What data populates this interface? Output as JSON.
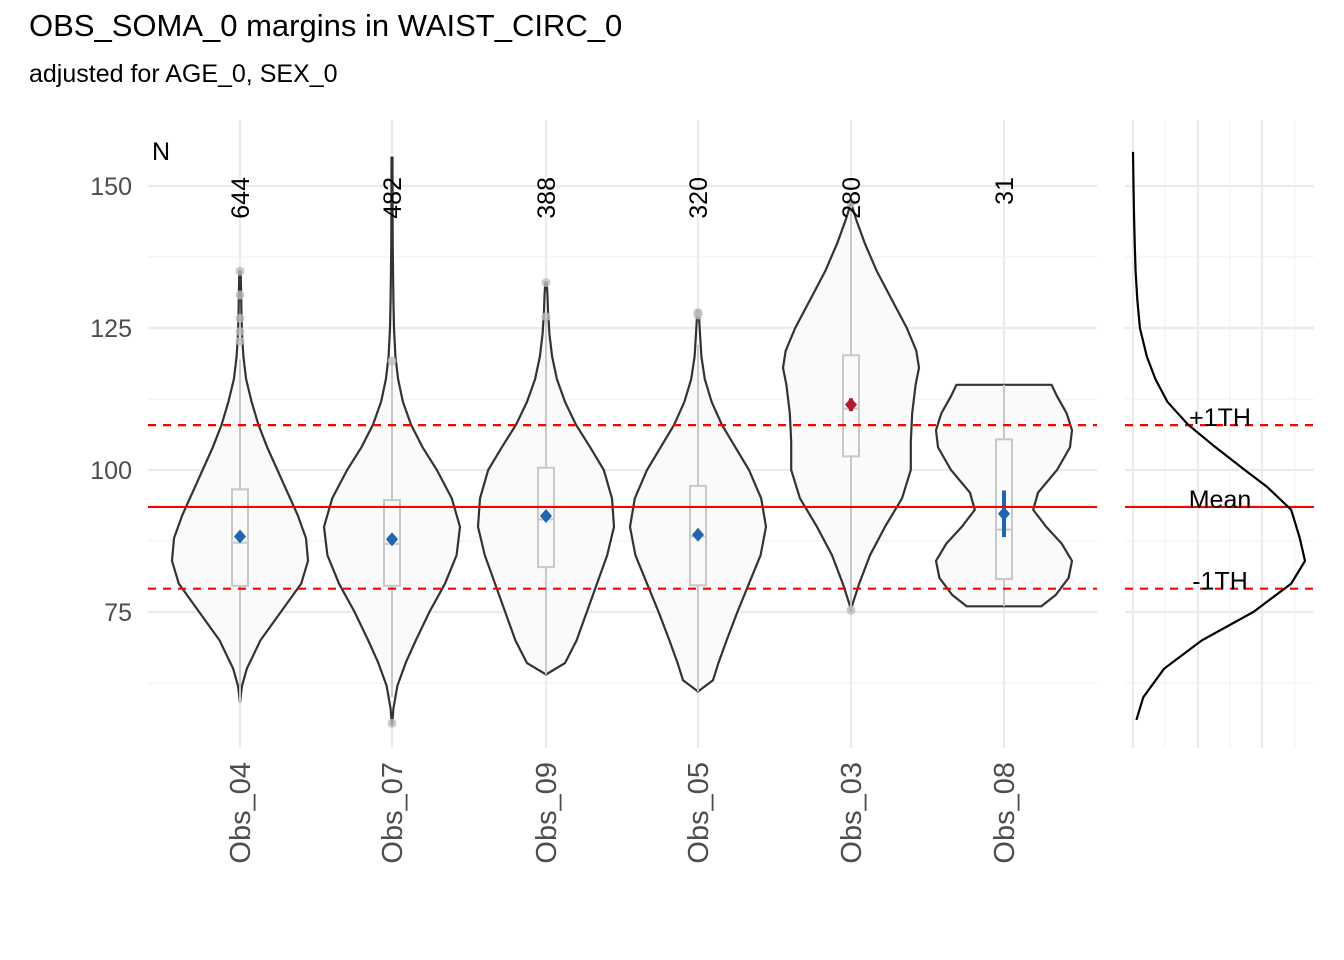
{
  "chart_data": {
    "type": "violin",
    "title": "OBS_SOMA_0 margins in WAIST_CIRC_0",
    "subtitle": "adjusted for AGE_0, SEX_0",
    "n_header": "N",
    "y_ticks": [
      75,
      100,
      125,
      150
    ],
    "ylim": [
      52,
      158
    ],
    "grid": true,
    "groups": [
      {
        "label": "Obs_04",
        "n": "644",
        "mean": 88.3,
        "ci": [
          87.6,
          89.0
        ],
        "q1": 79.6,
        "median": 87.2,
        "q3": 96.6,
        "whisker_low": 59.0,
        "whisker_high": 119.5,
        "min": 59.0,
        "max": 135.0,
        "highlight": "#2166ac",
        "outliers": [
          135.0,
          130.8,
          126.7,
          124.4,
          122.7
        ],
        "density": [
          [
            59,
            0.0
          ],
          [
            62,
            0.03
          ],
          [
            65,
            0.1
          ],
          [
            70,
            0.3
          ],
          [
            75,
            0.6
          ],
          [
            80,
            0.9
          ],
          [
            84,
            1.0
          ],
          [
            88,
            0.97
          ],
          [
            92,
            0.85
          ],
          [
            96,
            0.7
          ],
          [
            100,
            0.55
          ],
          [
            104,
            0.4
          ],
          [
            108,
            0.27
          ],
          [
            112,
            0.17
          ],
          [
            116,
            0.09
          ],
          [
            120,
            0.05
          ],
          [
            124,
            0.03
          ],
          [
            128,
            0.02
          ],
          [
            132,
            0.015
          ],
          [
            135,
            0.01
          ]
        ]
      },
      {
        "label": "Obs_07",
        "n": "482",
        "mean": 87.8,
        "ci": [
          87.2,
          88.5
        ],
        "q1": 79.6,
        "median": 87.0,
        "q3": 94.7,
        "whisker_low": 60.0,
        "whisker_high": 119.2,
        "min": 55.0,
        "max": 155.0,
        "highlight": "#2166ac",
        "outliers": [
          119.2,
          55.4
        ],
        "density": [
          [
            55,
            0.0
          ],
          [
            58,
            0.02
          ],
          [
            62,
            0.08
          ],
          [
            66,
            0.2
          ],
          [
            70,
            0.35
          ],
          [
            75,
            0.55
          ],
          [
            80,
            0.78
          ],
          [
            85,
            0.95
          ],
          [
            90,
            1.0
          ],
          [
            95,
            0.88
          ],
          [
            100,
            0.66
          ],
          [
            104,
            0.45
          ],
          [
            108,
            0.28
          ],
          [
            112,
            0.16
          ],
          [
            116,
            0.09
          ],
          [
            120,
            0.05
          ],
          [
            125,
            0.03
          ],
          [
            130,
            0.02
          ],
          [
            140,
            0.01
          ],
          [
            155,
            0.008
          ]
        ]
      },
      {
        "label": "Obs_09",
        "n": "388",
        "mean": 91.9,
        "ci": [
          91.3,
          92.5
        ],
        "q1": 82.9,
        "median": 91.3,
        "q3": 100.4,
        "whisker_low": 64.0,
        "whisker_high": 126.8,
        "min": 64.0,
        "max": 133.0,
        "highlight": "#2166ac",
        "outliers": [
          133.0,
          127.0
        ],
        "density": [
          [
            64,
            0.0
          ],
          [
            66,
            0.28
          ],
          [
            70,
            0.45
          ],
          [
            75,
            0.6
          ],
          [
            80,
            0.75
          ],
          [
            85,
            0.9
          ],
          [
            90,
            1.0
          ],
          [
            95,
            0.97
          ],
          [
            100,
            0.85
          ],
          [
            104,
            0.65
          ],
          [
            108,
            0.44
          ],
          [
            112,
            0.28
          ],
          [
            116,
            0.16
          ],
          [
            120,
            0.09
          ],
          [
            124,
            0.05
          ],
          [
            128,
            0.03
          ],
          [
            131,
            0.02
          ],
          [
            133,
            0.01
          ]
        ]
      },
      {
        "label": "Obs_05",
        "n": "320",
        "mean": 88.6,
        "ci": [
          87.9,
          89.4
        ],
        "q1": 79.7,
        "median": 88.3,
        "q3": 97.2,
        "whisker_low": 61.0,
        "whisker_high": 122.0,
        "min": 61.0,
        "max": 128.0,
        "highlight": "#2166ac",
        "outliers": [
          127.7,
          127.3
        ],
        "density": [
          [
            61,
            0.0
          ],
          [
            63,
            0.22
          ],
          [
            66,
            0.3
          ],
          [
            70,
            0.42
          ],
          [
            75,
            0.58
          ],
          [
            80,
            0.75
          ],
          [
            85,
            0.92
          ],
          [
            90,
            1.0
          ],
          [
            95,
            0.93
          ],
          [
            100,
            0.75
          ],
          [
            104,
            0.55
          ],
          [
            108,
            0.35
          ],
          [
            112,
            0.2
          ],
          [
            116,
            0.1
          ],
          [
            120,
            0.05
          ],
          [
            124,
            0.03
          ],
          [
            128,
            0.01
          ]
        ]
      },
      {
        "label": "Obs_03",
        "n": "280",
        "mean": 111.5,
        "ci": [
          110.4,
          112.6
        ],
        "q1": 102.4,
        "median": 110.8,
        "q3": 120.2,
        "whisker_low": 75.5,
        "whisker_high": 146.5,
        "min": 75.5,
        "max": 147.0,
        "highlight": "#b2182b",
        "outliers": [
          147.0,
          75.3
        ],
        "density": [
          [
            75.5,
            0.0
          ],
          [
            77,
            0.04
          ],
          [
            80,
            0.12
          ],
          [
            85,
            0.28
          ],
          [
            90,
            0.5
          ],
          [
            95,
            0.75
          ],
          [
            100,
            0.88
          ],
          [
            105,
            0.88
          ],
          [
            110,
            0.9
          ],
          [
            115,
            0.95
          ],
          [
            118,
            1.0
          ],
          [
            121,
            0.96
          ],
          [
            125,
            0.82
          ],
          [
            130,
            0.6
          ],
          [
            135,
            0.38
          ],
          [
            140,
            0.2
          ],
          [
            144,
            0.08
          ],
          [
            147,
            0.0
          ]
        ]
      },
      {
        "label": "Obs_08",
        "n": "31",
        "mean": 92.3,
        "ci": [
          88.2,
          96.4
        ],
        "q1": 80.8,
        "median": 89.5,
        "q3": 105.4,
        "whisker_low": 76.0,
        "whisker_high": 115.0,
        "min": 76.0,
        "max": 115.0,
        "highlight": "#2166ac",
        "outliers": [],
        "density": [
          [
            76,
            0.55
          ],
          [
            78,
            0.76
          ],
          [
            81,
            0.95
          ],
          [
            84,
            1.0
          ],
          [
            87,
            0.85
          ],
          [
            90,
            0.62
          ],
          [
            93,
            0.43
          ],
          [
            96,
            0.5
          ],
          [
            100,
            0.78
          ],
          [
            104,
            0.97
          ],
          [
            107,
            1.0
          ],
          [
            110,
            0.92
          ],
          [
            113,
            0.78
          ],
          [
            115,
            0.7
          ]
        ]
      }
    ],
    "reference_lines": {
      "mean": 93.5,
      "plus_1th": 107.9,
      "minus_1th": 79.1,
      "mean_label": "Mean",
      "plus_label": "+1TH",
      "minus_label": "-1TH"
    },
    "marginal_density": [
      [
        56,
        0.02
      ],
      [
        60,
        0.06
      ],
      [
        65,
        0.18
      ],
      [
        70,
        0.4
      ],
      [
        75,
        0.7
      ],
      [
        80,
        0.92
      ],
      [
        84,
        1.0
      ],
      [
        88,
        0.97
      ],
      [
        93,
        0.92
      ],
      [
        97,
        0.78
      ],
      [
        100,
        0.65
      ],
      [
        104,
        0.48
      ],
      [
        108,
        0.32
      ],
      [
        112,
        0.2
      ],
      [
        116,
        0.13
      ],
      [
        120,
        0.08
      ],
      [
        125,
        0.04
      ],
      [
        130,
        0.025
      ],
      [
        135,
        0.015
      ],
      [
        140,
        0.01
      ],
      [
        145,
        0.006
      ],
      [
        150,
        0.003
      ],
      [
        156,
        0.0
      ]
    ]
  }
}
